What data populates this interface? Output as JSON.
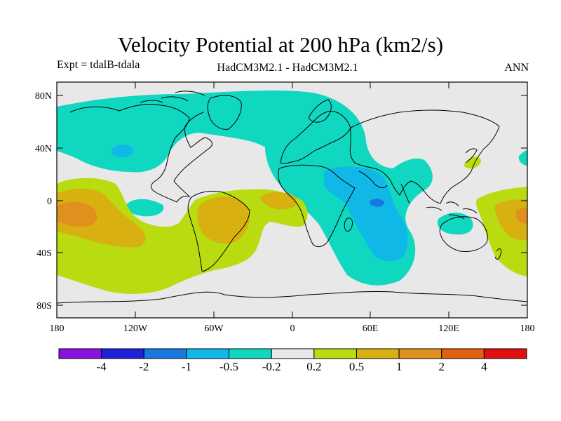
{
  "header": {
    "title": "Velocity Potential at 200 hPa (km2/s)",
    "expt": "Expt = tdalB-tdala",
    "models": "HadCM3M2.1 - HadCM3M2.1",
    "season": "ANN"
  },
  "axes": {
    "y_labels": [
      "80N",
      "40N",
      "0",
      "40S",
      "80S"
    ],
    "x_labels": [
      "180",
      "120W",
      "60W",
      "0",
      "60E",
      "120E",
      "180"
    ]
  },
  "colorbar": {
    "colors": [
      "#8a10e0",
      "#2020d8",
      "#1878e0",
      "#10b8e8",
      "#10d8c0",
      "#e8e8e8",
      "#b8dc10",
      "#d8b010",
      "#e0901c",
      "#e06010",
      "#e01010"
    ],
    "labels": [
      "-4",
      "-2",
      "-1",
      "-0.5",
      "-0.2",
      "0.2",
      "0.5",
      "1",
      "2",
      "4"
    ]
  },
  "palette": {
    "neutral": "#e8e8e8",
    "neg_02": "#10d8c0",
    "neg_05": "#10b8e8",
    "neg_1": "#1878e0",
    "pos_02": "#b8dc10",
    "pos_05": "#d8b010",
    "pos_1": "#e0901c",
    "coast": "#000000"
  }
}
